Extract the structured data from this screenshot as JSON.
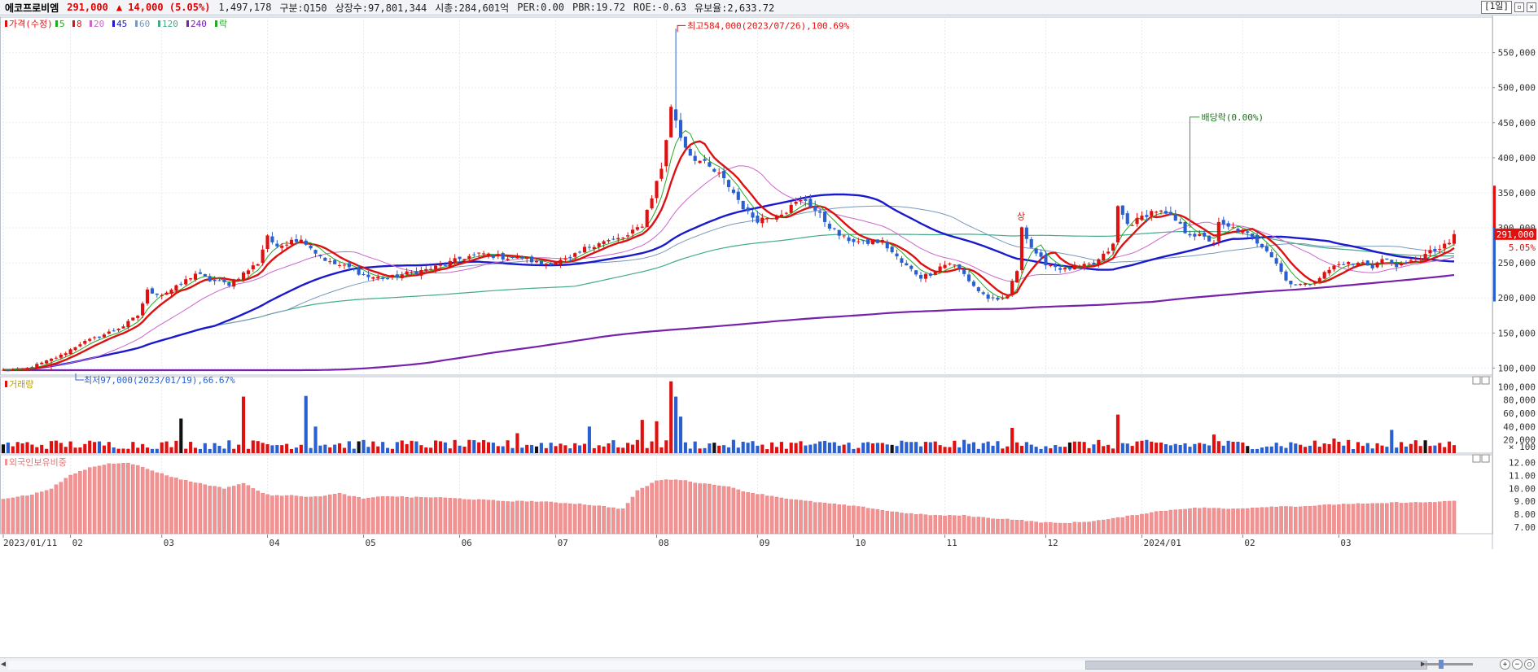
{
  "header": {
    "name": "에코프로비엠",
    "price": "291,000",
    "change": "▲ 14,000 (5.05%)",
    "volume": "1,497,178",
    "market": "구분:Q150",
    "shares": "상장수:97,801,344",
    "mktcap": "시총:284,601억",
    "per": "PER:0.00",
    "pbr": "PBR:19.72",
    "roe": "ROE:-0.63",
    "float": "유보율:2,633.72",
    "period": "[1일]"
  },
  "colors": {
    "up": "#e01010",
    "down": "#2a5fd0",
    "neutral": "#111111",
    "ma5": "#22aa22",
    "ma8": "#dd1111",
    "ma20": "#cc66cc",
    "ma45": "#1a1acc",
    "ma60": "#7799bb",
    "ma120": "#44aa88",
    "ma240": "#7722aa",
    "foreign": "#f29393"
  },
  "chart_data": [
    {
      "type": "candlestick",
      "legend": [
        {
          "label": "가격(수정)",
          "color": "#e01010"
        },
        {
          "label": "5",
          "color": "#22aa22"
        },
        {
          "label": "8",
          "color": "#dd1111"
        },
        {
          "label": "20",
          "color": "#cc66cc"
        },
        {
          "label": "45",
          "color": "#1a1acc"
        },
        {
          "label": "60",
          "color": "#7799bb"
        },
        {
          "label": "120",
          "color": "#44aa88"
        },
        {
          "label": "240",
          "color": "#7722aa"
        },
        {
          "label": "락",
          "color": "#22aa22"
        }
      ],
      "yticks": [
        100000,
        150000,
        200000,
        250000,
        300000,
        350000,
        400000,
        450000,
        500000,
        550000
      ],
      "ytick_labels": [
        "100,000",
        "150,000",
        "200,000",
        "250,000",
        "300,000",
        "350,000",
        "400,000",
        "450,000",
        "500,000",
        "550,000"
      ],
      "ylim": [
        90000,
        596000
      ],
      "price_anchors": [
        [
          0,
          97000
        ],
        [
          3,
          98000
        ],
        [
          5,
          100000
        ],
        [
          8,
          107000
        ],
        [
          12,
          118000
        ],
        [
          16,
          135000
        ],
        [
          20,
          145000
        ],
        [
          25,
          160000
        ],
        [
          28,
          175000
        ],
        [
          30,
          210000
        ],
        [
          33,
          205000
        ],
        [
          36,
          215000
        ],
        [
          40,
          235000
        ],
        [
          43,
          225000
        ],
        [
          47,
          220000
        ],
        [
          50,
          235000
        ],
        [
          53,
          250000
        ],
        [
          55,
          290000
        ],
        [
          57,
          270000
        ],
        [
          60,
          285000
        ],
        [
          63,
          280000
        ],
        [
          65,
          265000
        ],
        [
          68,
          250000
        ],
        [
          72,
          243000
        ],
        [
          76,
          230000
        ],
        [
          80,
          228000
        ],
        [
          84,
          235000
        ],
        [
          88,
          240000
        ],
        [
          92,
          248000
        ],
        [
          96,
          258000
        ],
        [
          100,
          263000
        ],
        [
          104,
          258000
        ],
        [
          108,
          258000
        ],
        [
          112,
          248000
        ],
        [
          115,
          252000
        ],
        [
          118,
          255000
        ],
        [
          121,
          270000
        ],
        [
          124,
          280000
        ],
        [
          127,
          282000
        ],
        [
          130,
          288000
        ],
        [
          133,
          305000
        ],
        [
          135,
          345000
        ],
        [
          137,
          385000
        ],
        [
          139,
          470000
        ],
        [
          140,
          455000
        ],
        [
          141,
          430000
        ],
        [
          143,
          405000
        ],
        [
          145,
          395000
        ],
        [
          147,
          385000
        ],
        [
          149,
          375000
        ],
        [
          151,
          360000
        ],
        [
          153,
          340000
        ],
        [
          155,
          320000
        ],
        [
          157,
          312000
        ],
        [
          159,
          315000
        ],
        [
          161,
          320000
        ],
        [
          163,
          325000
        ],
        [
          165,
          335000
        ],
        [
          167,
          340000
        ],
        [
          169,
          325000
        ],
        [
          171,
          310000
        ],
        [
          173,
          295000
        ],
        [
          175,
          285000
        ],
        [
          177,
          282000
        ],
        [
          179,
          278000
        ],
        [
          181,
          280000
        ],
        [
          183,
          280000
        ],
        [
          185,
          265000
        ],
        [
          187,
          250000
        ],
        [
          189,
          240000
        ],
        [
          191,
          230000
        ],
        [
          193,
          235000
        ],
        [
          195,
          245000
        ],
        [
          197,
          250000
        ],
        [
          199,
          242000
        ],
        [
          201,
          225000
        ],
        [
          203,
          210000
        ],
        [
          205,
          200000
        ],
        [
          207,
          195000
        ],
        [
          209,
          203000
        ],
        [
          211,
          240000
        ],
        [
          212,
          305000
        ],
        [
          213,
          285000
        ],
        [
          215,
          260000
        ],
        [
          217,
          250000
        ],
        [
          219,
          245000
        ],
        [
          221,
          240000
        ],
        [
          223,
          244000
        ],
        [
          225,
          245000
        ],
        [
          227,
          248000
        ],
        [
          229,
          260000
        ],
        [
          231,
          275000
        ],
        [
          232,
          330000
        ],
        [
          234,
          305000
        ],
        [
          236,
          310000
        ],
        [
          238,
          320000
        ],
        [
          240,
          325000
        ],
        [
          242,
          318000
        ],
        [
          244,
          310000
        ],
        [
          246,
          295000
        ],
        [
          248,
          290000
        ],
        [
          250,
          285000
        ],
        [
          252,
          280000
        ],
        [
          253,
          305000
        ],
        [
          255,
          300000
        ],
        [
          257,
          298000
        ],
        [
          259,
          290000
        ],
        [
          261,
          280000
        ],
        [
          263,
          270000
        ],
        [
          265,
          250000
        ],
        [
          267,
          225000
        ],
        [
          269,
          220000
        ],
        [
          271,
          218000
        ],
        [
          273,
          225000
        ],
        [
          275,
          235000
        ],
        [
          277,
          245000
        ],
        [
          279,
          250000
        ],
        [
          281,
          248000
        ],
        [
          283,
          250000
        ],
        [
          285,
          245000
        ],
        [
          287,
          255000
        ],
        [
          289,
          250000
        ],
        [
          291,
          245000
        ],
        [
          293,
          252000
        ],
        [
          295,
          258000
        ],
        [
          297,
          265000
        ],
        [
          299,
          270000
        ],
        [
          301,
          277000
        ],
        [
          302,
          291000
        ]
      ],
      "last_index": 302,
      "last_price": 291000,
      "highest": {
        "index": 140,
        "value": 584000,
        "label": "최고584,000(2023/07/26),100.69%"
      },
      "lowest": {
        "index": 10,
        "value": 97000,
        "label": "최저97,000(2023/01/19),66.67%"
      },
      "dividend_label": "배당락(0.00%)",
      "dividend_index": 247,
      "event_label": "상",
      "event_index": 212,
      "last_change_pct": "5.05%",
      "last_price_label": "291,000"
    },
    {
      "type": "bar",
      "title": "거래량",
      "yticks": [
        20000,
        40000,
        60000,
        80000,
        100000
      ],
      "ytick_labels": [
        "20,000",
        "40,000",
        "60,000",
        "80,000",
        "100,000"
      ],
      "unit_label": "× 100",
      "ylim": [
        0,
        115000
      ],
      "spikes": [
        {
          "index": 37,
          "value": 52000
        },
        {
          "index": 50,
          "value": 85000
        },
        {
          "index": 63,
          "value": 86000
        },
        {
          "index": 65,
          "value": 40000
        },
        {
          "index": 107,
          "value": 30000
        },
        {
          "index": 122,
          "value": 40000
        },
        {
          "index": 133,
          "value": 50000
        },
        {
          "index": 136,
          "value": 48000
        },
        {
          "index": 139,
          "value": 108000
        },
        {
          "index": 140,
          "value": 85000
        },
        {
          "index": 141,
          "value": 55000
        },
        {
          "index": 210,
          "value": 38000
        },
        {
          "index": 232,
          "value": 58000
        },
        {
          "index": 252,
          "value": 28000
        },
        {
          "index": 277,
          "value": 22000
        },
        {
          "index": 289,
          "value": 35000
        }
      ]
    },
    {
      "type": "bar",
      "title": "외국인보유비중",
      "yticks": [
        7,
        8,
        9,
        10,
        11,
        12
      ],
      "ytick_labels": [
        "7.00",
        "8.00",
        "9.00",
        "10.00",
        "11.00",
        "12.00"
      ],
      "ylim": [
        6.5,
        12.6
      ],
      "anchors": [
        [
          0,
          9.2
        ],
        [
          6,
          9.5
        ],
        [
          10,
          10.0
        ],
        [
          14,
          11.0
        ],
        [
          18,
          11.6
        ],
        [
          22,
          11.9
        ],
        [
          26,
          12.0
        ],
        [
          30,
          11.5
        ],
        [
          34,
          11.0
        ],
        [
          38,
          10.6
        ],
        [
          42,
          10.3
        ],
        [
          46,
          10.0
        ],
        [
          50,
          10.4
        ],
        [
          53,
          9.8
        ],
        [
          56,
          9.4
        ],
        [
          60,
          9.5
        ],
        [
          64,
          9.3
        ],
        [
          70,
          9.6
        ],
        [
          75,
          9.2
        ],
        [
          80,
          9.4
        ],
        [
          85,
          9.3
        ],
        [
          90,
          9.3
        ],
        [
          95,
          9.2
        ],
        [
          100,
          9.1
        ],
        [
          105,
          9.0
        ],
        [
          110,
          9.0
        ],
        [
          115,
          8.9
        ],
        [
          120,
          8.8
        ],
        [
          125,
          8.6
        ],
        [
          129,
          8.4
        ],
        [
          132,
          9.8
        ],
        [
          136,
          10.6
        ],
        [
          140,
          10.7
        ],
        [
          145,
          10.4
        ],
        [
          150,
          10.2
        ],
        [
          155,
          9.7
        ],
        [
          160,
          9.4
        ],
        [
          165,
          9.1
        ],
        [
          170,
          8.9
        ],
        [
          175,
          8.7
        ],
        [
          180,
          8.5
        ],
        [
          185,
          8.2
        ],
        [
          190,
          8.0
        ],
        [
          195,
          7.9
        ],
        [
          200,
          7.9
        ],
        [
          205,
          7.7
        ],
        [
          210,
          7.6
        ],
        [
          215,
          7.4
        ],
        [
          220,
          7.3
        ],
        [
          225,
          7.4
        ],
        [
          230,
          7.6
        ],
        [
          235,
          7.9
        ],
        [
          240,
          8.2
        ],
        [
          245,
          8.4
        ],
        [
          250,
          8.5
        ],
        [
          255,
          8.4
        ],
        [
          260,
          8.5
        ],
        [
          265,
          8.6
        ],
        [
          270,
          8.6
        ],
        [
          275,
          8.7
        ],
        [
          280,
          8.8
        ],
        [
          285,
          8.8
        ],
        [
          290,
          8.9
        ],
        [
          295,
          8.9
        ],
        [
          302,
          9.0
        ]
      ]
    }
  ],
  "months": [
    {
      "index": 0,
      "label": "2023/01/11"
    },
    {
      "index": 14,
      "label": "02"
    },
    {
      "index": 33,
      "label": "03"
    },
    {
      "index": 55,
      "label": "04"
    },
    {
      "index": 75,
      "label": "05"
    },
    {
      "index": 95,
      "label": "06"
    },
    {
      "index": 115,
      "label": "07"
    },
    {
      "index": 136,
      "label": "08"
    },
    {
      "index": 157,
      "label": "09"
    },
    {
      "index": 177,
      "label": "10"
    },
    {
      "index": 196,
      "label": "11"
    },
    {
      "index": 217,
      "label": "12"
    },
    {
      "index": 237,
      "label": "2024/01"
    },
    {
      "index": 258,
      "label": "02"
    },
    {
      "index": 278,
      "label": "03"
    }
  ]
}
